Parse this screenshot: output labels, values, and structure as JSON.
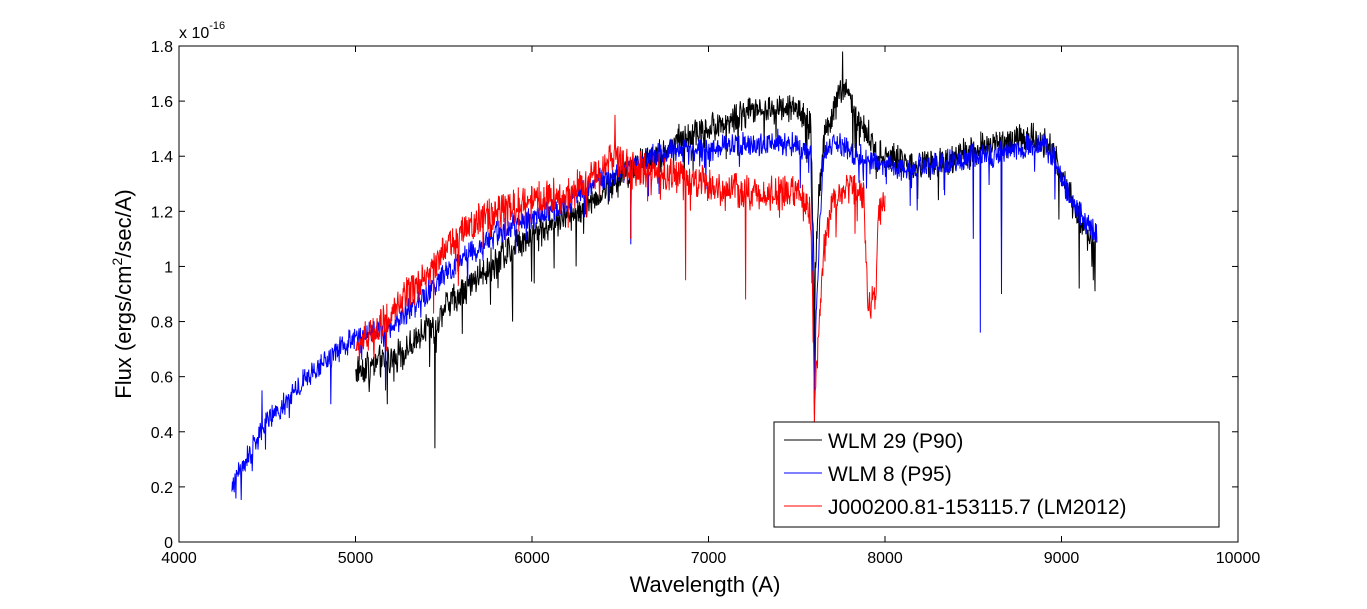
{
  "chart_data": {
    "type": "line",
    "title": "",
    "xlabel": "Wavelength (A)",
    "ylabel_parts": [
      "Flux (ergs/cm",
      "2",
      "/sec/A)"
    ],
    "ylabel": "Flux (ergs/cm^2/sec/A)",
    "y_multiplier_base": "x 10",
    "y_multiplier_exp": "-16",
    "xlim": [
      4000,
      10000
    ],
    "ylim": [
      0,
      1.8
    ],
    "xticks": [
      4000,
      5000,
      6000,
      7000,
      8000,
      9000,
      10000
    ],
    "xtick_labels": [
      "4000",
      "5000",
      "6000",
      "7000",
      "8000",
      "9000",
      "10000"
    ],
    "yticks": [
      0,
      0.2,
      0.4,
      0.6,
      0.8,
      1,
      1.2,
      1.4,
      1.6,
      1.8
    ],
    "ytick_labels": [
      "0",
      "0.2",
      "0.4",
      "0.6",
      "0.8",
      "1",
      "1.2",
      "1.4",
      "1.6",
      "1.8"
    ],
    "grid": false,
    "legend_position": "bottom-right",
    "series": [
      {
        "name": "WLM 29 (P90)",
        "color": "#000000",
        "noise": 0.045,
        "x": [
          5000,
          5100,
          5200,
          5300,
          5400,
          5450,
          5500,
          5600,
          5700,
          5800,
          5900,
          6000,
          6100,
          6200,
          6300,
          6400,
          6500,
          6600,
          6700,
          6800,
          6900,
          7000,
          7100,
          7200,
          7300,
          7400,
          7500,
          7580,
          7600,
          7620,
          7650,
          7700,
          7750,
          7800,
          7850,
          7900,
          7950,
          8000,
          8100,
          8200,
          8300,
          8400,
          8500,
          8600,
          8700,
          8800,
          8900,
          8950,
          9000,
          9050,
          9100,
          9150,
          9200
        ],
        "y": [
          0.62,
          0.65,
          0.66,
          0.7,
          0.78,
          0.76,
          0.86,
          0.9,
          0.97,
          1.02,
          1.08,
          1.12,
          1.15,
          1.18,
          1.22,
          1.27,
          1.32,
          1.37,
          1.4,
          1.44,
          1.48,
          1.5,
          1.52,
          1.55,
          1.57,
          1.58,
          1.58,
          1.5,
          0.9,
          1.2,
          1.45,
          1.55,
          1.65,
          1.6,
          1.52,
          1.48,
          1.42,
          1.4,
          1.38,
          1.36,
          1.38,
          1.4,
          1.42,
          1.44,
          1.45,
          1.46,
          1.45,
          1.42,
          1.35,
          1.25,
          1.18,
          1.12,
          1.1
        ],
        "spikes": [
          [
            5180,
            0.5
          ],
          [
            5450,
            0.34
          ],
          [
            5890,
            0.8
          ],
          [
            6250,
            1.0
          ],
          [
            6560,
            1.1
          ],
          [
            7600,
            0.5
          ],
          [
            8540,
            1.12
          ],
          [
            8660,
            1.1
          ],
          [
            9100,
            0.92
          ],
          [
            9180,
            0.95
          ],
          [
            7760,
            1.78
          ]
        ]
      },
      {
        "name": "WLM 8 (P95)",
        "color": "#0000ff",
        "noise": 0.035,
        "x": [
          4300,
          4350,
          4400,
          4450,
          4500,
          4600,
          4700,
          4800,
          4900,
          5000,
          5100,
          5200,
          5300,
          5400,
          5500,
          5600,
          5700,
          5800,
          5900,
          6000,
          6100,
          6200,
          6300,
          6400,
          6500,
          6600,
          6700,
          6800,
          6900,
          7000,
          7100,
          7200,
          7300,
          7400,
          7500,
          7580,
          7600,
          7620,
          7650,
          7700,
          7750,
          7800,
          7850,
          7900,
          8000,
          8100,
          8200,
          8300,
          8400,
          8500,
          8600,
          8700,
          8800,
          8900,
          8950,
          9000,
          9050,
          9100,
          9150,
          9200
        ],
        "y": [
          0.2,
          0.27,
          0.32,
          0.38,
          0.44,
          0.5,
          0.58,
          0.64,
          0.7,
          0.74,
          0.76,
          0.78,
          0.84,
          0.9,
          0.96,
          1.03,
          1.07,
          1.12,
          1.15,
          1.18,
          1.2,
          1.23,
          1.28,
          1.32,
          1.34,
          1.38,
          1.4,
          1.42,
          1.42,
          1.43,
          1.44,
          1.44,
          1.44,
          1.45,
          1.44,
          1.4,
          0.6,
          1.0,
          1.38,
          1.45,
          1.44,
          1.42,
          1.4,
          1.38,
          1.37,
          1.36,
          1.36,
          1.38,
          1.38,
          1.4,
          1.4,
          1.42,
          1.44,
          1.44,
          1.4,
          1.32,
          1.25,
          1.2,
          1.15,
          1.12
        ],
        "spikes": [
          [
            4470,
            0.55
          ],
          [
            4860,
            0.5
          ],
          [
            5170,
            0.55
          ],
          [
            6560,
            1.08
          ],
          [
            8500,
            1.1
          ],
          [
            8540,
            0.76
          ],
          [
            8660,
            0.9
          ],
          [
            7600,
            0.46
          ]
        ]
      },
      {
        "name": "J000200.81-153115.7 (LM2012)",
        "color": "#ff0000",
        "noise": 0.05,
        "x": [
          5000,
          5100,
          5200,
          5300,
          5400,
          5500,
          5600,
          5700,
          5800,
          5900,
          6000,
          6100,
          6200,
          6300,
          6400,
          6450,
          6500,
          6550,
          6600,
          6700,
          6800,
          6900,
          7000,
          7100,
          7200,
          7300,
          7400,
          7500,
          7580,
          7600,
          7620,
          7650,
          7700,
          7750,
          7800,
          7850,
          7880,
          7900,
          7920,
          7950,
          7960,
          7980,
          8000
        ],
        "y": [
          0.7,
          0.76,
          0.82,
          0.9,
          0.97,
          1.05,
          1.12,
          1.17,
          1.2,
          1.22,
          1.24,
          1.25,
          1.26,
          1.3,
          1.36,
          1.4,
          1.38,
          1.36,
          1.35,
          1.34,
          1.33,
          1.32,
          1.3,
          1.28,
          1.27,
          1.26,
          1.27,
          1.27,
          1.2,
          0.5,
          0.7,
          1.05,
          1.22,
          1.26,
          1.28,
          1.27,
          1.25,
          0.88,
          0.87,
          0.9,
          1.18,
          1.2,
          1.22
        ],
        "spikes": [
          [
            6470,
            1.55
          ],
          [
            6870,
            0.95
          ],
          [
            7210,
            0.88
          ],
          [
            7600,
            0.42
          ],
          [
            6560,
            1.1
          ]
        ]
      }
    ]
  }
}
